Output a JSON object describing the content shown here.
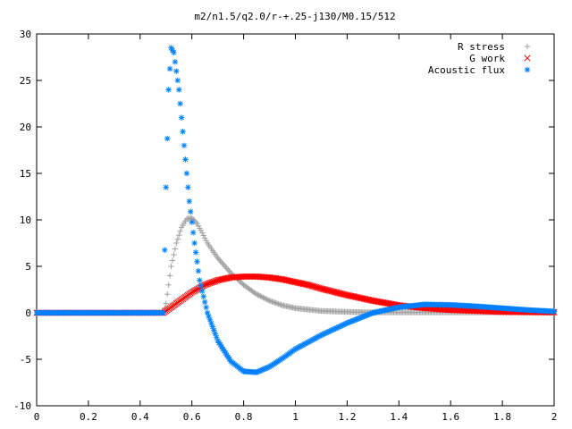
{
  "chart_data": {
    "type": "scatter",
    "title": "m2/n1.5/q2.0/r-+.25-j130/M0.15/512",
    "xlabel": "",
    "ylabel": "",
    "xlim": [
      0,
      2
    ],
    "ylim": [
      -10,
      30
    ],
    "x_ticks": [
      "0",
      "0.2",
      "0.4",
      "0.6",
      "0.8",
      "1",
      "1.2",
      "1.4",
      "1.6",
      "1.8",
      "2"
    ],
    "y_ticks": [
      "-10",
      "-5",
      "0",
      "5",
      "10",
      "15",
      "20",
      "25",
      "30"
    ],
    "grid": false,
    "legend_position": "top-right",
    "x_step": 0.005,
    "series": [
      {
        "name": "R stress",
        "marker": "plus",
        "color": "#a0a0a0",
        "points": [
          [
            0.0,
            0
          ],
          [
            0.1,
            0
          ],
          [
            0.2,
            0
          ],
          [
            0.3,
            0
          ],
          [
            0.4,
            0
          ],
          [
            0.49,
            0
          ],
          [
            0.5,
            1.0
          ],
          [
            0.52,
            5.0
          ],
          [
            0.54,
            7.5
          ],
          [
            0.56,
            9.2
          ],
          [
            0.58,
            10.1
          ],
          [
            0.6,
            10.2
          ],
          [
            0.62,
            9.6
          ],
          [
            0.64,
            8.6
          ],
          [
            0.66,
            7.5
          ],
          [
            0.7,
            5.9
          ],
          [
            0.75,
            4.3
          ],
          [
            0.8,
            3.0
          ],
          [
            0.85,
            2.0
          ],
          [
            0.9,
            1.3
          ],
          [
            0.95,
            0.8
          ],
          [
            1.0,
            0.5
          ],
          [
            1.1,
            0.2
          ],
          [
            1.2,
            0.1
          ],
          [
            1.3,
            0.05
          ],
          [
            1.4,
            0.05
          ],
          [
            1.6,
            0.05
          ],
          [
            1.8,
            0.05
          ],
          [
            2.0,
            0.05
          ]
        ]
      },
      {
        "name": "G work",
        "marker": "cross",
        "color": "#ff0000",
        "points": [
          [
            0.0,
            0
          ],
          [
            0.1,
            0
          ],
          [
            0.2,
            0
          ],
          [
            0.3,
            0
          ],
          [
            0.4,
            0
          ],
          [
            0.49,
            0
          ],
          [
            0.5,
            0.2
          ],
          [
            0.55,
            1.2
          ],
          [
            0.6,
            2.2
          ],
          [
            0.65,
            3.0
          ],
          [
            0.7,
            3.5
          ],
          [
            0.75,
            3.8
          ],
          [
            0.8,
            3.9
          ],
          [
            0.85,
            3.9
          ],
          [
            0.9,
            3.8
          ],
          [
            0.95,
            3.6
          ],
          [
            1.0,
            3.3
          ],
          [
            1.05,
            3.0
          ],
          [
            1.1,
            2.6
          ],
          [
            1.2,
            1.9
          ],
          [
            1.3,
            1.3
          ],
          [
            1.4,
            0.8
          ],
          [
            1.5,
            0.5
          ],
          [
            1.6,
            0.3
          ],
          [
            1.7,
            0.2
          ],
          [
            1.8,
            0.1
          ],
          [
            2.0,
            0.05
          ]
        ]
      },
      {
        "name": "Acoustic flux",
        "marker": "star",
        "color": "#0080ff",
        "points": [
          [
            0.0,
            0
          ],
          [
            0.1,
            0
          ],
          [
            0.2,
            0
          ],
          [
            0.3,
            0
          ],
          [
            0.4,
            0
          ],
          [
            0.49,
            0
          ],
          [
            0.5,
            13.5
          ],
          [
            0.51,
            24.0
          ],
          [
            0.52,
            28.5
          ],
          [
            0.53,
            28.0
          ],
          [
            0.55,
            24.0
          ],
          [
            0.57,
            18.0
          ],
          [
            0.59,
            12.0
          ],
          [
            0.61,
            7.5
          ],
          [
            0.63,
            3.5
          ],
          [
            0.66,
            0.0
          ],
          [
            0.7,
            -3.0
          ],
          [
            0.75,
            -5.2
          ],
          [
            0.8,
            -6.3
          ],
          [
            0.85,
            -6.4
          ],
          [
            0.9,
            -5.8
          ],
          [
            0.95,
            -4.9
          ],
          [
            1.0,
            -3.9
          ],
          [
            1.1,
            -2.4
          ],
          [
            1.2,
            -1.1
          ],
          [
            1.3,
            0.0
          ],
          [
            1.4,
            0.6
          ],
          [
            1.5,
            0.9
          ],
          [
            1.6,
            0.85
          ],
          [
            1.7,
            0.7
          ],
          [
            1.8,
            0.5
          ],
          [
            1.9,
            0.3
          ],
          [
            2.0,
            0.15
          ]
        ]
      }
    ]
  }
}
